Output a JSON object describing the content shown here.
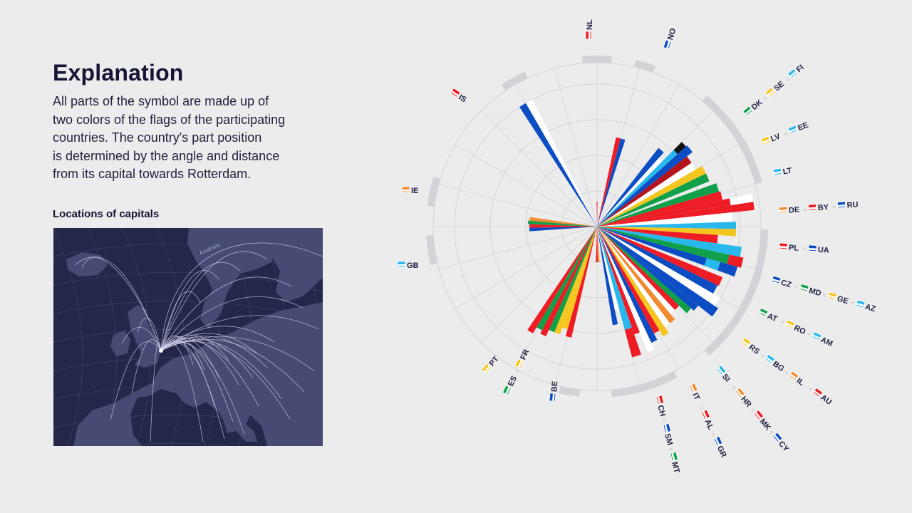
{
  "explanation": {
    "title": "Explanation",
    "lines": [
      "All parts of the symbol are made up of",
      "two colors of the flags of the participating",
      "countries. The country's part position",
      "is determined by the angle and distance",
      "from its capital towards Rotterdam."
    ]
  },
  "map": {
    "title": "Locations of capitals",
    "arc_label": "Australia"
  },
  "colors": {
    "background": "#ececec",
    "map_background": "#25274a",
    "map_land": "#474a72",
    "ring_outline": "#d4d4d9",
    "group_bracket": "#d2d2d7",
    "red": "#ee1c25",
    "blue": "#0d4dc4",
    "light_blue": "#29b8ec",
    "green": "#11a04a",
    "yellow": "#f5c520",
    "orange": "#f28a30",
    "dark_red": "#b4141e",
    "black": "#111111",
    "white": "#ffffff"
  },
  "country_groups": [
    [
      "NL"
    ],
    [
      "NO"
    ],
    [
      "DK",
      "SE",
      "FI"
    ],
    [
      "LV",
      "EE"
    ],
    [
      "LT"
    ],
    [
      "DE",
      "BY",
      "RU"
    ],
    [
      "PL",
      "UA"
    ],
    [
      "CZ",
      "MD",
      "GE",
      "AZ"
    ],
    [
      "AT",
      "RO",
      "AM"
    ],
    [
      "RS",
      "BG",
      "IL",
      "AU"
    ],
    [
      "SI",
      "HR",
      "MK",
      "CY"
    ],
    [
      "IT",
      "AL",
      "GR"
    ],
    [
      "CH",
      "SM",
      "MT"
    ],
    [
      "BE"
    ],
    [
      "ES",
      "FR"
    ],
    [
      "PT"
    ],
    [
      "GB"
    ],
    [
      "IE"
    ],
    [
      "IS"
    ]
  ],
  "separator_glyph": "<"
}
